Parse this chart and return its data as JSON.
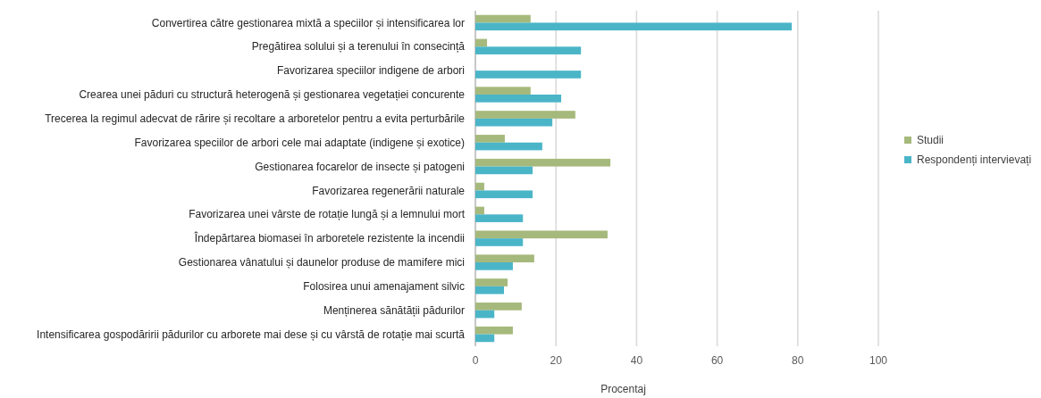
{
  "chart_data": {
    "type": "bar",
    "orientation": "horizontal",
    "xlabel": "Procentaj",
    "categories": [
      "Convertirea către gestionarea mixtă a speciilor și intensificarea lor",
      "Pregătirea solului și a terenului în consecință",
      "Favorizarea speciilor indigene de arbori",
      "Crearea unei păduri cu structură heterogenă și gestionarea vegetației concurente",
      "Trecerea la regimul adecvat de rărire și recoltare a arboretelor pentru a evita perturbările",
      "Favorizarea speciilor de arbori cele mai adaptate (indigene și exotice)",
      "Gestionarea focarelor de insecte și patogeni",
      "Favorizarea regenerării naturale",
      "Favorizarea unei vârste de rotație lungă și a lemnului mort",
      "Îndepărtarea biomasei în arboretele rezistente la incendii",
      "Gestionarea vânatului și daunelor produse de mamifere mici",
      "Folosirea unui amenajament silvic",
      "Menținerea sănătății pădurilor",
      "Intensificarea gospodăririi pădurilor cu arborete mai dese și cu vârstă de rotație mai scurtă"
    ],
    "series": [
      {
        "name": "Studii",
        "color": "#a6b97c",
        "values": [
          13.7,
          2.9,
          0,
          13.7,
          24.8,
          7.3,
          33.5,
          2.2,
          2.2,
          32.8,
          14.6,
          8,
          11.5,
          9.3
        ]
      },
      {
        "name": "Respondenți intervievați",
        "color": "#4bb5c8",
        "values": [
          78.5,
          26.2,
          26.2,
          21.3,
          19.1,
          16.6,
          14.2,
          14.2,
          11.8,
          11.8,
          9.3,
          7.1,
          4.7,
          4.7
        ]
      }
    ],
    "xlim": [
      0,
      100
    ],
    "xticks": [
      0,
      20,
      40,
      60,
      80,
      100
    ],
    "grid": "x",
    "legend": "right"
  }
}
